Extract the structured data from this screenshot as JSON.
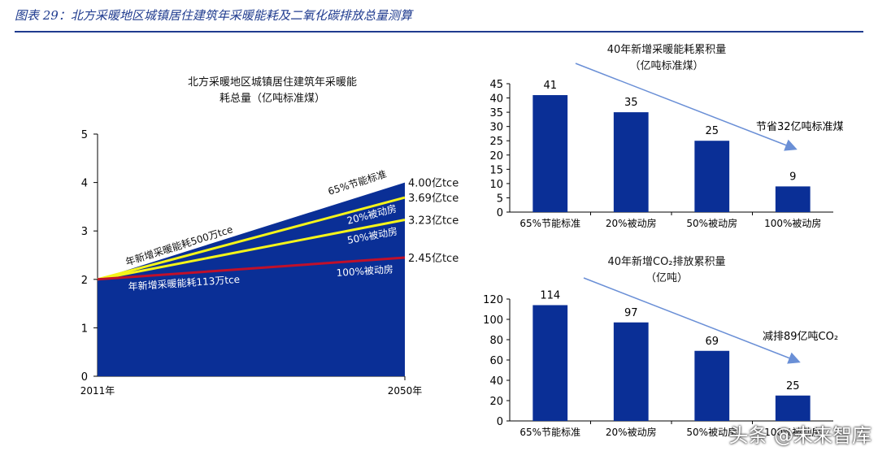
{
  "figure_title": "图表 29：北方采暖地区城镇居住建筑年采暖能耗及二氧化碳排放总量测算",
  "watermark": "头条 @未来智库",
  "colors": {
    "blue": "#0a2f96",
    "yellow": "#f5f51a",
    "red": "#c0102a",
    "arrow": "#6a8fd6"
  },
  "chart_data": [
    {
      "type": "area",
      "title_line1": "北方采暖地区城镇居住建筑年采暖能",
      "title_line2": "耗总量（亿吨标准煤）",
      "x_labels": [
        "2011年",
        "2050年"
      ],
      "ylim": [
        0,
        5
      ],
      "yticks": [
        "0",
        "1",
        "2",
        "3",
        "4",
        "5"
      ],
      "start_value": 2.0,
      "series": [
        {
          "name": "65%节能标准",
          "end_value": 4.0,
          "end_label": "4.00亿tce",
          "color": "#0a2f96"
        },
        {
          "name": "20%被动房",
          "end_value": 3.69,
          "end_label": "3.69亿tce",
          "color": "#f5f51a"
        },
        {
          "name": "50%被动房",
          "end_value": 3.23,
          "end_label": "3.23亿tce",
          "color": "#f5f51a"
        },
        {
          "name": "100%被动房",
          "end_value": 2.45,
          "end_label": "2.45亿tce",
          "color": "#c0102a"
        }
      ],
      "annotations": {
        "upper": "年新增采暖能耗500万tce",
        "lower": "年新增采暖能耗113万tce"
      }
    },
    {
      "type": "bar",
      "title_line1": "40年新增采暖能耗累积量",
      "title_line2": "（亿吨标准煤）",
      "categories": [
        "65%节能标准",
        "20%被动房",
        "50%被动房",
        "100%被动房"
      ],
      "values": [
        41,
        35,
        25,
        9
      ],
      "ylim": [
        0,
        45
      ],
      "yticks": [
        "0",
        "5",
        "10",
        "15",
        "20",
        "25",
        "30",
        "35",
        "40",
        "45"
      ],
      "annotation": "节省32亿吨标准煤"
    },
    {
      "type": "bar",
      "title_line1": "40年新增CO₂排放累积量",
      "title_line2": "（亿吨）",
      "categories": [
        "65%节能标准",
        "20%被动房",
        "50%被动房",
        "100%被动房"
      ],
      "values": [
        114,
        97,
        69,
        25
      ],
      "ylim": [
        0,
        120
      ],
      "yticks": [
        "0",
        "20",
        "40",
        "60",
        "80",
        "100",
        "120"
      ],
      "annotation": "减排89亿吨CO₂"
    }
  ]
}
